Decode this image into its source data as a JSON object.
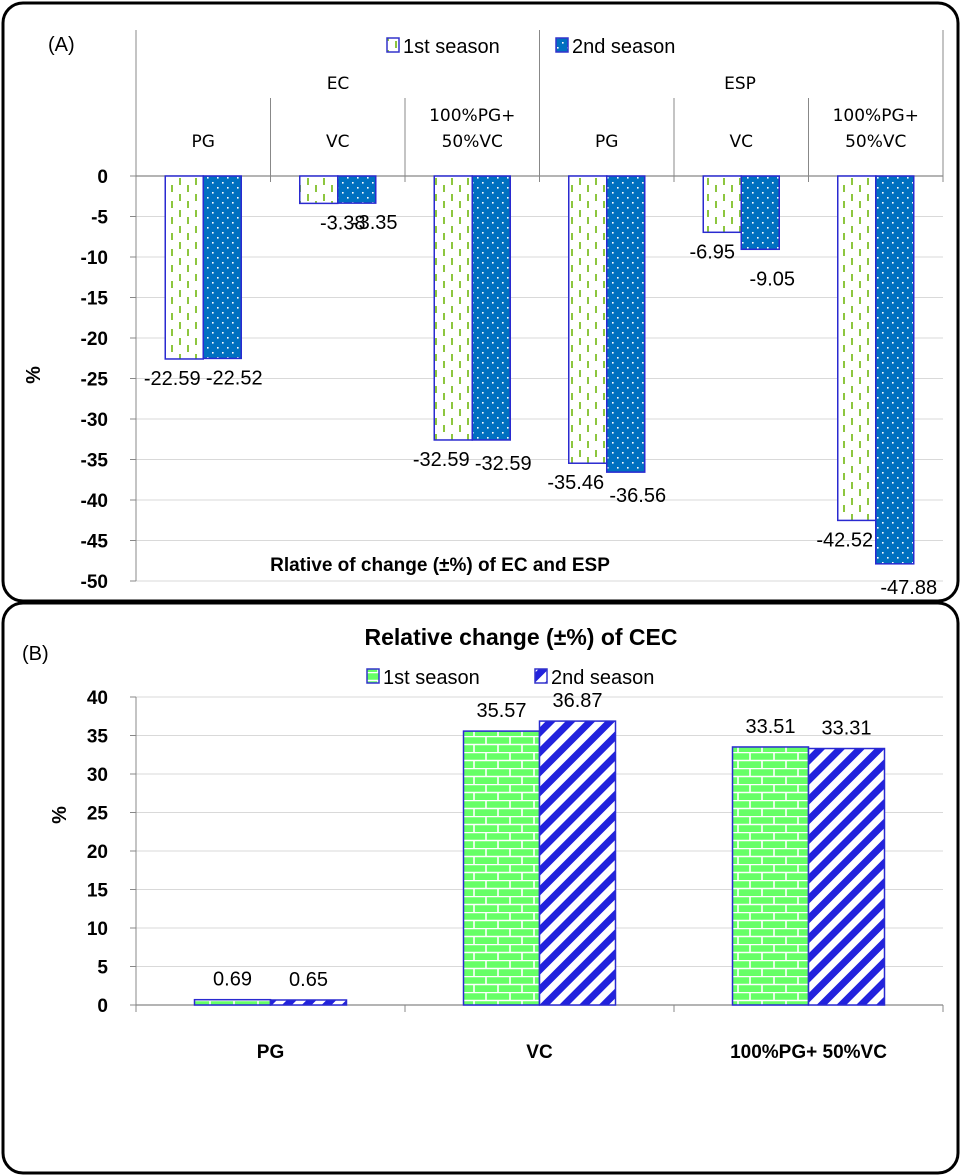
{
  "chart_data": [
    {
      "panel": "(A)",
      "type": "bar",
      "title": "Rlative of change (±%) of EC and ESP",
      "ylabel": "%",
      "ylim": [
        -50,
        0
      ],
      "yticks": [
        0,
        -5,
        -10,
        -15,
        -20,
        -25,
        -30,
        -35,
        -40,
        -45,
        -50
      ],
      "groups": [
        {
          "name": "EC",
          "categories": [
            "PG",
            "VC",
            "100%PG+\n50%VC"
          ]
        },
        {
          "name": "ESP",
          "categories": [
            "PG",
            "VC",
            "100%PG+\n50%VC"
          ]
        }
      ],
      "series": [
        {
          "name": "1st season",
          "values": [
            -22.59,
            -3.38,
            -32.59,
            -35.46,
            -6.95,
            -42.52
          ],
          "labels": [
            "-22.59",
            "-3.38",
            "-32.59",
            "-35.46",
            "-6.95",
            "-42.52"
          ],
          "fill": "dashes",
          "color": "#8dc63f"
        },
        {
          "name": "2nd season",
          "values": [
            -22.52,
            -3.35,
            -32.59,
            -36.56,
            -9.05,
            -47.88
          ],
          "labels": [
            "-22.52",
            "-3.35",
            "-32.59",
            "-36.56",
            "-9.05",
            "-47.88"
          ],
          "fill": "dots",
          "color": "#0070c0"
        }
      ],
      "legend": "top",
      "grid": true
    },
    {
      "panel": "(B)",
      "type": "bar",
      "title": "Relative change (±%) of CEC",
      "ylabel": "%",
      "ylim": [
        0,
        40
      ],
      "yticks": [
        0,
        5,
        10,
        15,
        20,
        25,
        30,
        35,
        40
      ],
      "categories": [
        "PG",
        "VC",
        "100%PG+ 50%VC"
      ],
      "series": [
        {
          "name": "1st season",
          "values": [
            0.69,
            35.57,
            33.51
          ],
          "labels": [
            "0.69",
            "35.57",
            "33.51"
          ],
          "fill": "bricks",
          "color": "#66ff66"
        },
        {
          "name": "2nd season",
          "values": [
            0.65,
            36.87,
            33.31
          ],
          "labels": [
            "0.65",
            "36.87",
            "33.31"
          ],
          "fill": "diagonal",
          "color": "#2222dd"
        }
      ],
      "legend": "top",
      "grid": true
    }
  ]
}
